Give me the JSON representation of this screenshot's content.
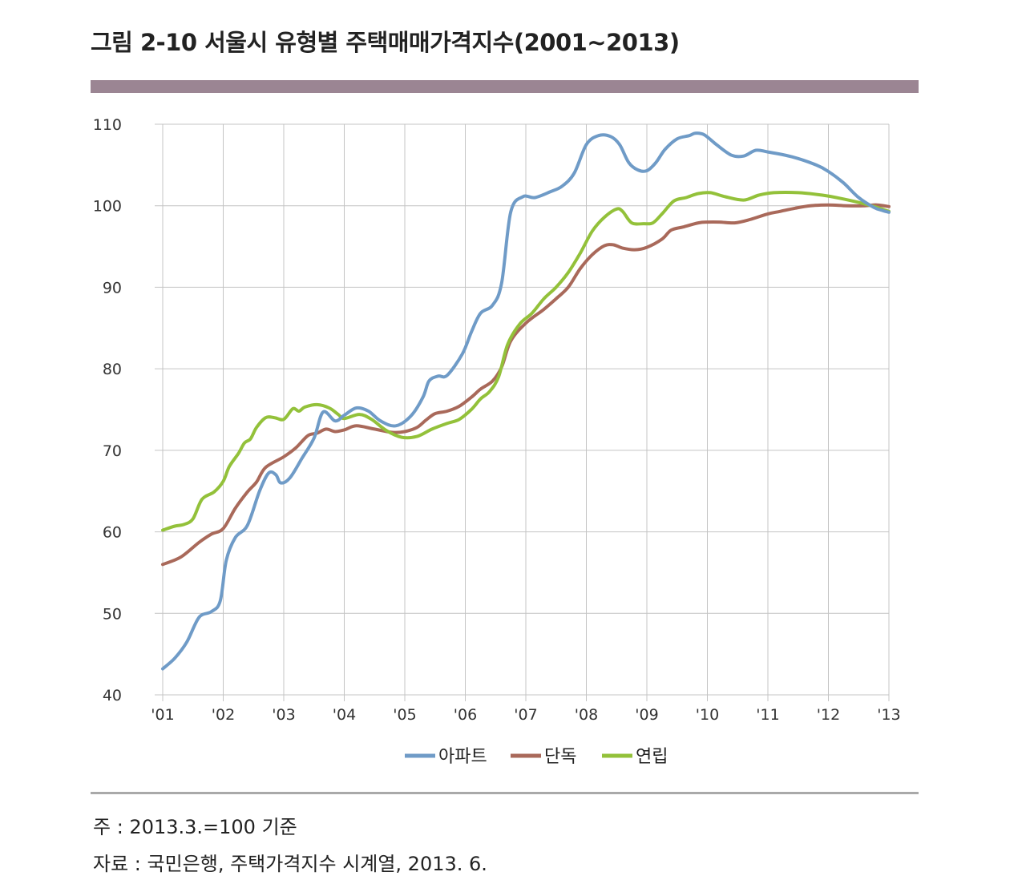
{
  "title": "그림 2-10 서울시 유형별 주택매매가격지수(2001~2013)",
  "notes": {
    "basis": "주 : 2013.3.=100 기준",
    "source": "자료 : 국민은행, 주택가격지수 시계열, 2013. 6."
  },
  "colors": {
    "title_bar": "#9b8593",
    "apartment": "#6f9bc7",
    "detached": "#a9695a",
    "row_house": "#93c13a",
    "grid": "#c4c4c4"
  },
  "chart_data": {
    "type": "line",
    "ylim": [
      40,
      110
    ],
    "yticks": [
      "40",
      "50",
      "60",
      "70",
      "80",
      "90",
      "100",
      "110"
    ],
    "xlim": [
      2001,
      2013
    ],
    "xticks": [
      "'01",
      "'02",
      "'03",
      "'04",
      "'05",
      "'06",
      "'07",
      "'08",
      "'09",
      "'10",
      "'11",
      "'12",
      "'13"
    ],
    "grid": true,
    "legend_position": "bottom",
    "series": [
      {
        "name": "아파트",
        "color": "#6f9bc7",
        "points": [
          [
            2001.0,
            43.2
          ],
          [
            2001.2,
            44.5
          ],
          [
            2001.4,
            46.5
          ],
          [
            2001.6,
            49.5
          ],
          [
            2001.8,
            50.2
          ],
          [
            2001.95,
            51.5
          ],
          [
            2002.05,
            56.5
          ],
          [
            2002.2,
            59.3
          ],
          [
            2002.4,
            60.8
          ],
          [
            2002.6,
            65.0
          ],
          [
            2002.75,
            67.2
          ],
          [
            2002.87,
            67.0
          ],
          [
            2002.95,
            66.0
          ],
          [
            2003.1,
            66.6
          ],
          [
            2003.3,
            69.0
          ],
          [
            2003.5,
            71.5
          ],
          [
            2003.65,
            74.7
          ],
          [
            2003.85,
            73.6
          ],
          [
            2004.0,
            74.3
          ],
          [
            2004.2,
            75.2
          ],
          [
            2004.4,
            74.8
          ],
          [
            2004.6,
            73.6
          ],
          [
            2004.85,
            73.0
          ],
          [
            2005.1,
            74.2
          ],
          [
            2005.3,
            76.5
          ],
          [
            2005.4,
            78.5
          ],
          [
            2005.55,
            79.1
          ],
          [
            2005.7,
            79.2
          ],
          [
            2005.95,
            81.8
          ],
          [
            2006.1,
            84.5
          ],
          [
            2006.25,
            86.8
          ],
          [
            2006.45,
            87.8
          ],
          [
            2006.6,
            90.5
          ],
          [
            2006.75,
            99.2
          ],
          [
            2006.95,
            101.1
          ],
          [
            2007.15,
            101.0
          ],
          [
            2007.4,
            101.7
          ],
          [
            2007.6,
            102.4
          ],
          [
            2007.8,
            104.0
          ],
          [
            2008.0,
            107.5
          ],
          [
            2008.2,
            108.6
          ],
          [
            2008.4,
            108.5
          ],
          [
            2008.55,
            107.5
          ],
          [
            2008.7,
            105.3
          ],
          [
            2008.85,
            104.4
          ],
          [
            2009.0,
            104.3
          ],
          [
            2009.15,
            105.3
          ],
          [
            2009.3,
            106.9
          ],
          [
            2009.5,
            108.2
          ],
          [
            2009.7,
            108.6
          ],
          [
            2009.8,
            108.9
          ],
          [
            2009.95,
            108.7
          ],
          [
            2010.15,
            107.5
          ],
          [
            2010.4,
            106.2
          ],
          [
            2010.6,
            106.1
          ],
          [
            2010.8,
            106.8
          ],
          [
            2011.0,
            106.6
          ],
          [
            2011.4,
            106.0
          ],
          [
            2011.8,
            105.0
          ],
          [
            2012.0,
            104.2
          ],
          [
            2012.25,
            102.8
          ],
          [
            2012.5,
            101.0
          ],
          [
            2012.75,
            99.8
          ],
          [
            2012.9,
            99.4
          ],
          [
            2013.0,
            99.2
          ]
        ]
      },
      {
        "name": "단독",
        "color": "#a9695a",
        "points": [
          [
            2001.0,
            56.0
          ],
          [
            2001.3,
            56.9
          ],
          [
            2001.6,
            58.7
          ],
          [
            2001.8,
            59.7
          ],
          [
            2002.0,
            60.4
          ],
          [
            2002.2,
            62.9
          ],
          [
            2002.4,
            64.9
          ],
          [
            2002.55,
            66.1
          ],
          [
            2002.7,
            67.9
          ],
          [
            2003.0,
            69.2
          ],
          [
            2003.2,
            70.3
          ],
          [
            2003.4,
            71.8
          ],
          [
            2003.55,
            72.1
          ],
          [
            2003.7,
            72.6
          ],
          [
            2003.85,
            72.3
          ],
          [
            2004.0,
            72.5
          ],
          [
            2004.2,
            73.0
          ],
          [
            2004.5,
            72.6
          ],
          [
            2004.8,
            72.2
          ],
          [
            2005.0,
            72.3
          ],
          [
            2005.2,
            72.8
          ],
          [
            2005.35,
            73.7
          ],
          [
            2005.5,
            74.5
          ],
          [
            2005.7,
            74.8
          ],
          [
            2005.9,
            75.4
          ],
          [
            2006.1,
            76.5
          ],
          [
            2006.25,
            77.5
          ],
          [
            2006.45,
            78.5
          ],
          [
            2006.6,
            80.2
          ],
          [
            2006.75,
            83.4
          ],
          [
            2007.0,
            85.6
          ],
          [
            2007.3,
            87.3
          ],
          [
            2007.5,
            88.6
          ],
          [
            2007.7,
            90.0
          ],
          [
            2007.9,
            92.3
          ],
          [
            2008.1,
            94.0
          ],
          [
            2008.3,
            95.1
          ],
          [
            2008.45,
            95.2
          ],
          [
            2008.6,
            94.8
          ],
          [
            2008.8,
            94.6
          ],
          [
            2009.0,
            94.9
          ],
          [
            2009.25,
            95.9
          ],
          [
            2009.4,
            97.0
          ],
          [
            2009.6,
            97.4
          ],
          [
            2009.85,
            97.9
          ],
          [
            2010.0,
            98.0
          ],
          [
            2010.2,
            98.0
          ],
          [
            2010.45,
            97.9
          ],
          [
            2010.7,
            98.3
          ],
          [
            2011.0,
            99.0
          ],
          [
            2011.2,
            99.3
          ],
          [
            2011.45,
            99.7
          ],
          [
            2011.7,
            100.0
          ],
          [
            2012.0,
            100.1
          ],
          [
            2012.3,
            100.0
          ],
          [
            2012.6,
            100.0
          ],
          [
            2012.8,
            100.1
          ],
          [
            2013.0,
            99.9
          ]
        ]
      },
      {
        "name": "연립",
        "color": "#93c13a",
        "points": [
          [
            2001.0,
            60.2
          ],
          [
            2001.2,
            60.7
          ],
          [
            2001.35,
            60.9
          ],
          [
            2001.5,
            61.6
          ],
          [
            2001.65,
            64.0
          ],
          [
            2001.85,
            64.9
          ],
          [
            2002.0,
            66.2
          ],
          [
            2002.1,
            68.0
          ],
          [
            2002.25,
            69.6
          ],
          [
            2002.35,
            70.9
          ],
          [
            2002.45,
            71.4
          ],
          [
            2002.55,
            72.8
          ],
          [
            2002.7,
            74.0
          ],
          [
            2002.85,
            74.0
          ],
          [
            2003.0,
            73.8
          ],
          [
            2003.15,
            75.1
          ],
          [
            2003.25,
            74.8
          ],
          [
            2003.35,
            75.3
          ],
          [
            2003.55,
            75.6
          ],
          [
            2003.75,
            75.2
          ],
          [
            2003.9,
            74.4
          ],
          [
            2004.0,
            73.9
          ],
          [
            2004.25,
            74.4
          ],
          [
            2004.45,
            73.8
          ],
          [
            2004.7,
            72.4
          ],
          [
            2004.95,
            71.6
          ],
          [
            2005.2,
            71.7
          ],
          [
            2005.45,
            72.6
          ],
          [
            2005.7,
            73.3
          ],
          [
            2005.9,
            73.8
          ],
          [
            2006.1,
            75.0
          ],
          [
            2006.25,
            76.3
          ],
          [
            2006.4,
            77.2
          ],
          [
            2006.55,
            79.0
          ],
          [
            2006.7,
            83.0
          ],
          [
            2006.9,
            85.5
          ],
          [
            2007.1,
            86.8
          ],
          [
            2007.3,
            88.6
          ],
          [
            2007.5,
            90.0
          ],
          [
            2007.7,
            91.8
          ],
          [
            2007.9,
            94.2
          ],
          [
            2008.1,
            96.9
          ],
          [
            2008.3,
            98.6
          ],
          [
            2008.5,
            99.6
          ],
          [
            2008.6,
            99.3
          ],
          [
            2008.75,
            97.9
          ],
          [
            2008.95,
            97.8
          ],
          [
            2009.1,
            97.9
          ],
          [
            2009.25,
            99.0
          ],
          [
            2009.45,
            100.6
          ],
          [
            2009.65,
            101.0
          ],
          [
            2009.85,
            101.5
          ],
          [
            2010.05,
            101.6
          ],
          [
            2010.3,
            101.1
          ],
          [
            2010.6,
            100.7
          ],
          [
            2010.85,
            101.3
          ],
          [
            2011.1,
            101.6
          ],
          [
            2011.5,
            101.6
          ],
          [
            2011.9,
            101.3
          ],
          [
            2012.2,
            100.9
          ],
          [
            2012.5,
            100.4
          ],
          [
            2012.8,
            99.8
          ],
          [
            2013.0,
            99.3
          ]
        ]
      }
    ]
  }
}
